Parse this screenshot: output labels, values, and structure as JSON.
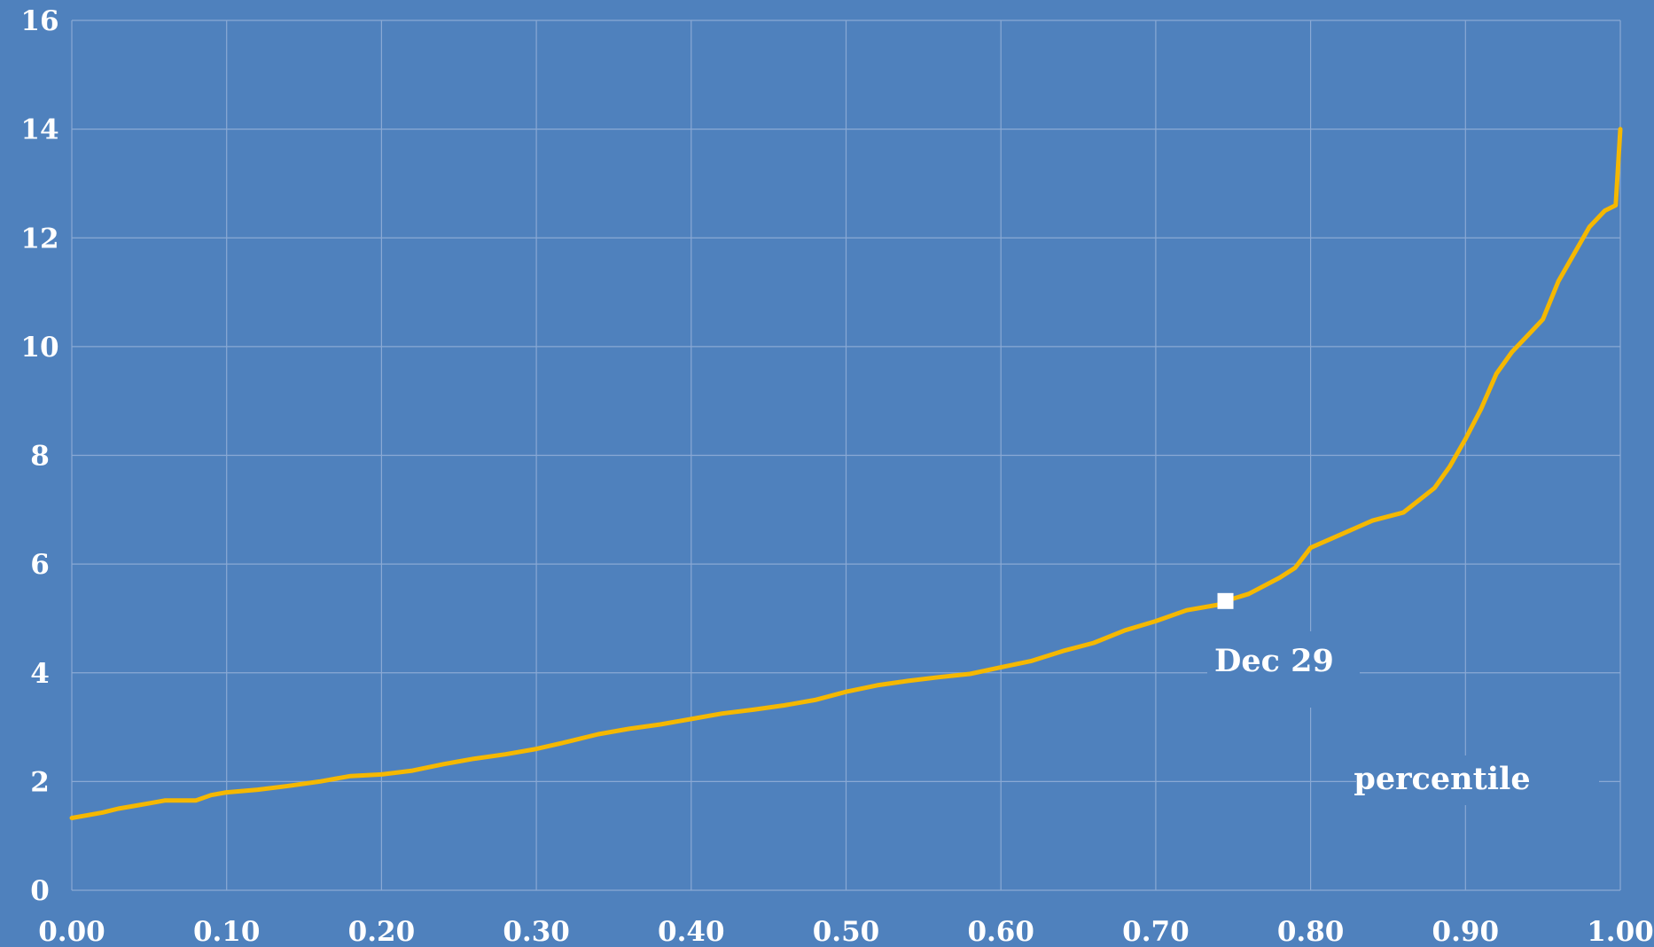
{
  "chart_data": {
    "type": "line",
    "title": "",
    "xlabel": "percentile",
    "ylabel": "",
    "xlim": [
      0,
      1
    ],
    "ylim": [
      0,
      16
    ],
    "x_ticks": [
      "0.00",
      "0.10",
      "0.20",
      "0.30",
      "0.40",
      "0.50",
      "0.60",
      "0.70",
      "0.80",
      "0.90",
      "1.00"
    ],
    "y_ticks": [
      "0",
      "2",
      "4",
      "6",
      "8",
      "10",
      "12",
      "14",
      "16"
    ],
    "grid": true,
    "legend": "none",
    "colors": {
      "background": "#4f81bd",
      "grid": "#8aa9d4",
      "line": "#f5b800",
      "marker": "#ffffff",
      "text": "#ffffff"
    },
    "series": [
      {
        "x": [
          0.0,
          0.01,
          0.02,
          0.03,
          0.04,
          0.05,
          0.06,
          0.08,
          0.09,
          0.1,
          0.12,
          0.14,
          0.16,
          0.18,
          0.2,
          0.22,
          0.24,
          0.26,
          0.28,
          0.3,
          0.32,
          0.34,
          0.36,
          0.38,
          0.4,
          0.42,
          0.44,
          0.46,
          0.48,
          0.5,
          0.52,
          0.54,
          0.56,
          0.58,
          0.6,
          0.62,
          0.64,
          0.66,
          0.68,
          0.7,
          0.72,
          0.74,
          0.745,
          0.76,
          0.78,
          0.79,
          0.8,
          0.82,
          0.84,
          0.86,
          0.88,
          0.89,
          0.9,
          0.91,
          0.92,
          0.93,
          0.94,
          0.95,
          0.96,
          0.97,
          0.98,
          0.99,
          0.997,
          1.0
        ],
        "y": [
          1.33,
          1.38,
          1.43,
          1.5,
          1.55,
          1.6,
          1.65,
          1.65,
          1.75,
          1.8,
          1.85,
          1.92,
          2.0,
          2.1,
          2.13,
          2.2,
          2.32,
          2.42,
          2.5,
          2.6,
          2.73,
          2.87,
          2.97,
          3.05,
          3.15,
          3.25,
          3.32,
          3.4,
          3.5,
          3.65,
          3.77,
          3.85,
          3.92,
          3.98,
          4.1,
          4.22,
          4.4,
          4.55,
          4.78,
          4.95,
          5.15,
          5.25,
          5.32,
          5.45,
          5.75,
          5.93,
          6.3,
          6.55,
          6.8,
          6.95,
          7.4,
          7.8,
          8.3,
          8.85,
          9.5,
          9.9,
          10.2,
          10.5,
          11.2,
          11.7,
          12.2,
          12.5,
          12.6,
          14.0
        ]
      }
    ],
    "annotations": [
      {
        "label": "Dec 29",
        "x": 0.745,
        "y": 5.32
      }
    ]
  }
}
